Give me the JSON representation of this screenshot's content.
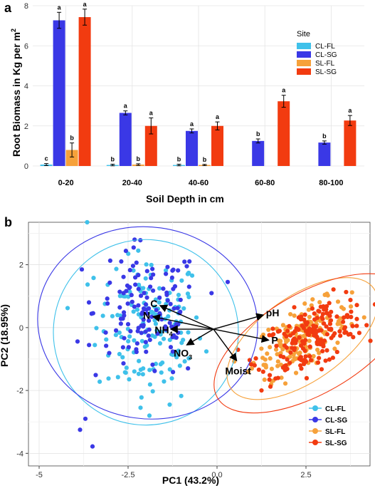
{
  "panels": {
    "a": "a",
    "b": "b"
  },
  "colors": {
    "CL-FL": "#3fc1ea",
    "CL-SG": "#3a38e6",
    "SL-FL": "#f6a13a",
    "SL-SG": "#f23b10"
  },
  "chart_data": [
    {
      "type": "bar",
      "xlabel": "Soil Depth in cm",
      "ylabel": "Root Biomass in Kg per m",
      "ylabel_sup": "2",
      "ylim": [
        0,
        8
      ],
      "yticks": [
        0,
        2,
        4,
        6,
        8
      ],
      "grid": true,
      "legend_title": "Site",
      "legend_position": "top-right",
      "categories": [
        "0-20",
        "20-40",
        "40-60",
        "60-80",
        "80-100"
      ],
      "series": [
        {
          "name": "CL-FL",
          "values": [
            0.07,
            0.05,
            0.05,
            0.0,
            0.0
          ],
          "errors": [
            0.05,
            0.04,
            0.04,
            0,
            0
          ],
          "labels": [
            "c",
            "b",
            "b",
            "",
            ""
          ]
        },
        {
          "name": "CL-SG",
          "values": [
            7.27,
            2.65,
            1.75,
            1.25,
            1.17
          ],
          "errors": [
            0.4,
            0.1,
            0.1,
            0.1,
            0.08
          ],
          "labels": [
            "a",
            "a",
            "a",
            "b",
            "b"
          ]
        },
        {
          "name": "SL-FL",
          "values": [
            0.8,
            0.07,
            0.05,
            0.0,
            0.0
          ],
          "errors": [
            0.35,
            0.04,
            0.03,
            0,
            0
          ],
          "labels": [
            "b",
            "b",
            "b",
            "",
            ""
          ]
        },
        {
          "name": "SL-SG",
          "values": [
            7.43,
            2.0,
            2.0,
            3.23,
            2.27
          ],
          "errors": [
            0.4,
            0.4,
            0.2,
            0.3,
            0.25
          ],
          "labels": [
            "a",
            "a",
            "a",
            "a",
            "a"
          ]
        }
      ]
    },
    {
      "type": "scatter",
      "xlabel": "PC1 (43.2%)",
      "ylabel": "PC2 (18.95%)",
      "xlim": [
        -5.3,
        4.3
      ],
      "ylim": [
        -4.4,
        3.35
      ],
      "xticks": [
        "-5",
        "-2.5",
        "0.0",
        "2.5"
      ],
      "yticks": [
        "-4",
        "-2",
        "0",
        "2"
      ],
      "xtick_values": [
        -5,
        -2.5,
        0,
        2.5
      ],
      "ytick_values": [
        -4,
        -2,
        0,
        2
      ],
      "grid": true,
      "legend_position": "bottom-right",
      "series_names": [
        "CL-FL",
        "CL-SG",
        "SL-FL",
        "SL-SG"
      ],
      "cluster_centers": {
        "CL-FL": [
          -1.9,
          0.0
        ],
        "CL-SG": [
          -1.95,
          0.45
        ],
        "SL-FL": [
          2.35,
          -0.35
        ],
        "SL-SG": [
          2.65,
          -0.3
        ]
      },
      "point_counts": {
        "CL-FL": 150,
        "CL-SG": 130,
        "SL-FL": 170,
        "SL-SG": 190
      },
      "outliers": {
        "CL-FL": [
          [
            -3.65,
            3.35
          ],
          [
            -4.2,
            0.62
          ],
          [
            -1.9,
            -2.8
          ],
          [
            -2.15,
            -2.55
          ]
        ],
        "CL-SG": [
          [
            -3.7,
            -2.9
          ],
          [
            -3.5,
            -3.78
          ],
          [
            -3.85,
            -3.25
          ],
          [
            -3.8,
            1.85
          ],
          [
            -3.6,
            0.8
          ],
          [
            0.3,
            1.45
          ]
        ]
      },
      "ellipses": [
        {
          "group": "CL-FL",
          "cx": -2.0,
          "cy": -0.15,
          "rx": 2.6,
          "ry": 2.95,
          "angle": -5
        },
        {
          "group": "CL-SG",
          "cx": -1.95,
          "cy": 0.15,
          "rx": 3.1,
          "ry": 3.05,
          "angle": -8
        },
        {
          "group": "SL-FL",
          "cx": 2.4,
          "cy": -0.35,
          "rx": 2.45,
          "ry": 1.35,
          "angle": 35
        },
        {
          "group": "SL-SG",
          "cx": 2.65,
          "cy": -0.5,
          "rx": 3.05,
          "ry": 1.6,
          "angle": 30
        }
      ],
      "vectors": [
        {
          "label": "C",
          "x": -1.6,
          "y": 0.7
        },
        {
          "label": "N",
          "x": -1.8,
          "y": 0.35
        },
        {
          "label": "NH",
          "sub": "4",
          "x": -1.3,
          "y": -0.05
        },
        {
          "label": "NO",
          "sub": "3",
          "x": -0.85,
          "y": -0.55
        },
        {
          "label": "pH",
          "x": 1.3,
          "y": 0.4
        },
        {
          "label": "P",
          "x": 1.45,
          "y": -0.4
        },
        {
          "label": "Moist",
          "x": 0.55,
          "y": -1.05
        }
      ],
      "vector_origin": [
        -0.1,
        -0.05
      ]
    }
  ]
}
